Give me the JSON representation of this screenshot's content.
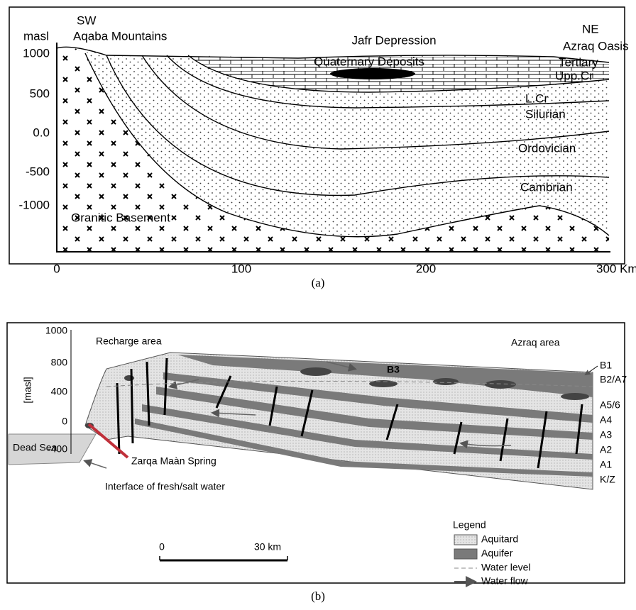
{
  "panel_a": {
    "caption": "(a)",
    "sw": "SW",
    "aqaba_mountains": "Aqaba Mountains",
    "y_axis_title": "masl",
    "y_labels": [
      "1000",
      "500",
      "0.0",
      "-500",
      "-1000"
    ],
    "x_labels": [
      "0",
      "100",
      "200",
      "300 Km"
    ],
    "jafr_depression": "Jafr Depression",
    "quaternary_deposits": "Quaternary Deposits",
    "ne": "NE",
    "azraq_oasis": "Azraq Oasis",
    "tertiary": "Tertiary",
    "upp_cr": "Upp.Cr",
    "l_cr": "L.Cr",
    "silurian": "Silurian",
    "ordovician": "Ordovician",
    "cambrian": "Cambrian",
    "granitic_basement": "Granitic Basement"
  },
  "panel_b": {
    "caption": "(b)",
    "y_axis_title": "[masl]",
    "y_labels": [
      "1000",
      "800",
      "400",
      "0",
      "-400"
    ],
    "recharge_area": "Recharge area",
    "azraq_area": "Azraq area",
    "b3": "B3",
    "units": [
      "B1",
      "B2/A7",
      "A5/6",
      "A4",
      "A3",
      "A2",
      "A1",
      "K/Z"
    ],
    "dead_sea": "Dead Sea",
    "spring": "Zarqa Maàn Spring",
    "interface": "Interface of fresh/salt water",
    "legend": {
      "title": "Legend",
      "items": [
        "Aquitard",
        "Aquifer",
        "Water level",
        "Water flow"
      ]
    },
    "scale": [
      "0",
      "30 km"
    ]
  }
}
